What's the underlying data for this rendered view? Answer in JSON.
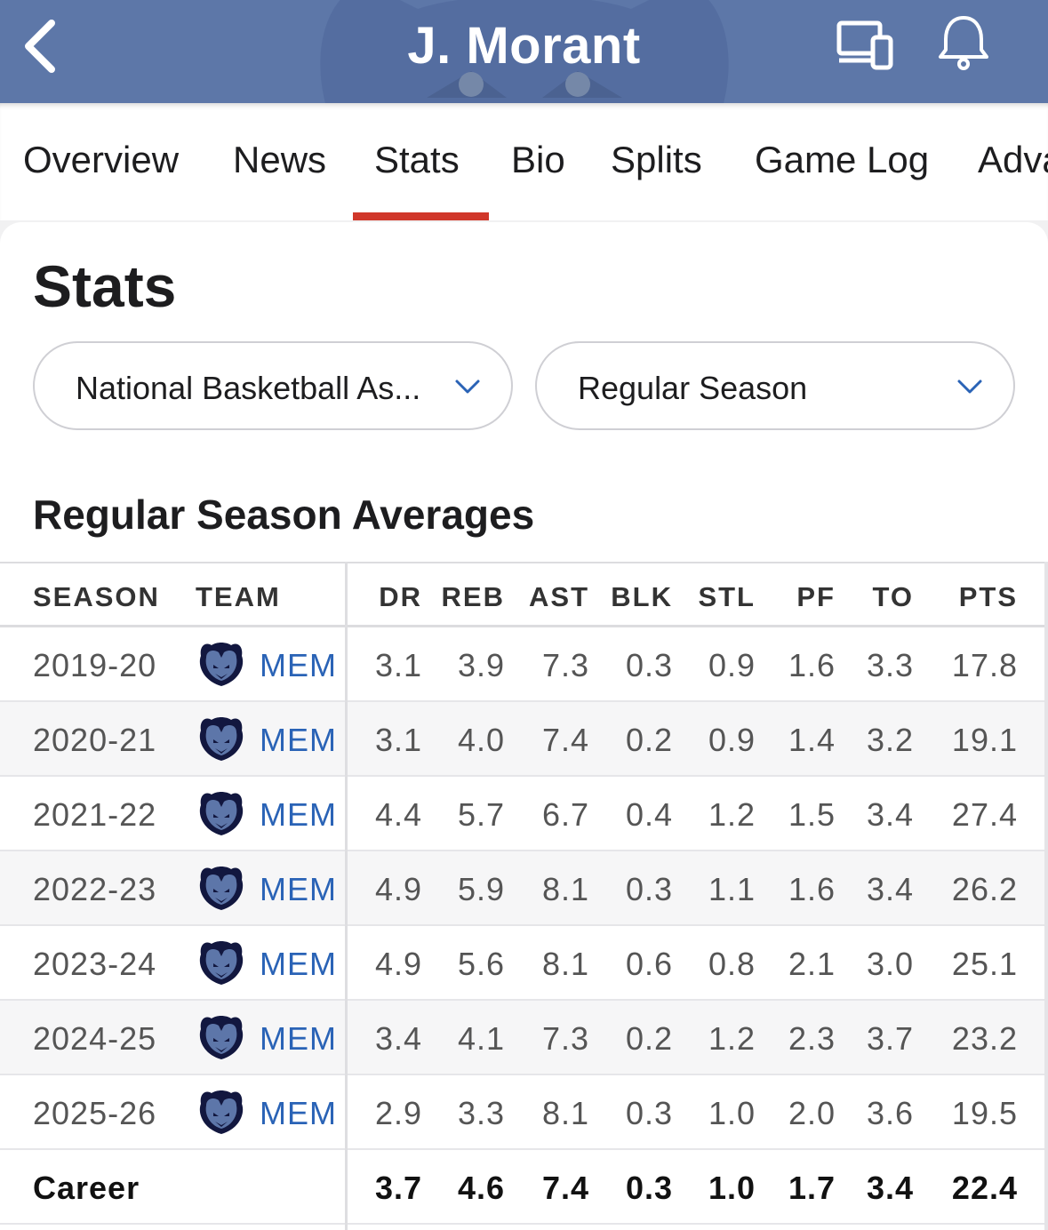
{
  "header": {
    "title": "J. Morant",
    "bg_color": "#5d77a8",
    "icons": [
      "chevron-left-icon",
      "devices-icon",
      "bell-icon"
    ]
  },
  "tabs": [
    {
      "label": "Overview",
      "active": false
    },
    {
      "label": "News",
      "active": false
    },
    {
      "label": "Stats",
      "active": true
    },
    {
      "label": "Bio",
      "active": false
    },
    {
      "label": "Splits",
      "active": false
    },
    {
      "label": "Game Log",
      "active": false
    },
    {
      "label": "Adva",
      "active": false
    }
  ],
  "accent_color": "#d0372a",
  "main": {
    "heading": "Stats",
    "league_dropdown": "National Basketball As...",
    "season_type_dropdown": "Regular Season",
    "section_title": "Regular Season Averages"
  },
  "table": {
    "columns": [
      "SEASON",
      "TEAM",
      "DR",
      "REB",
      "AST",
      "BLK",
      "STL",
      "PF",
      "TO",
      "PTS"
    ],
    "rows": [
      {
        "season": "2019-20",
        "team": "MEM",
        "stats": [
          "3.1",
          "3.9",
          "7.3",
          "0.3",
          "0.9",
          "1.6",
          "3.3",
          "17.8"
        ]
      },
      {
        "season": "2020-21",
        "team": "MEM",
        "stats": [
          "3.1",
          "4.0",
          "7.4",
          "0.2",
          "0.9",
          "1.4",
          "3.2",
          "19.1"
        ]
      },
      {
        "season": "2021-22",
        "team": "MEM",
        "stats": [
          "4.4",
          "5.7",
          "6.7",
          "0.4",
          "1.2",
          "1.5",
          "3.4",
          "27.4"
        ]
      },
      {
        "season": "2022-23",
        "team": "MEM",
        "stats": [
          "4.9",
          "5.9",
          "8.1",
          "0.3",
          "1.1",
          "1.6",
          "3.4",
          "26.2"
        ]
      },
      {
        "season": "2023-24",
        "team": "MEM",
        "stats": [
          "4.9",
          "5.6",
          "8.1",
          "0.6",
          "0.8",
          "2.1",
          "3.0",
          "25.1"
        ]
      },
      {
        "season": "2024-25",
        "team": "MEM",
        "stats": [
          "3.4",
          "4.1",
          "7.3",
          "0.2",
          "1.2",
          "2.3",
          "3.7",
          "23.2"
        ]
      },
      {
        "season": "2025-26",
        "team": "MEM",
        "stats": [
          "2.9",
          "3.3",
          "8.1",
          "0.3",
          "1.0",
          "2.0",
          "3.6",
          "19.5"
        ]
      }
    ],
    "career": {
      "label": "Career",
      "stats": [
        "3.7",
        "4.6",
        "7.4",
        "0.3",
        "1.0",
        "1.7",
        "3.4",
        "22.4"
      ]
    },
    "team_color": "#2a63b6"
  }
}
